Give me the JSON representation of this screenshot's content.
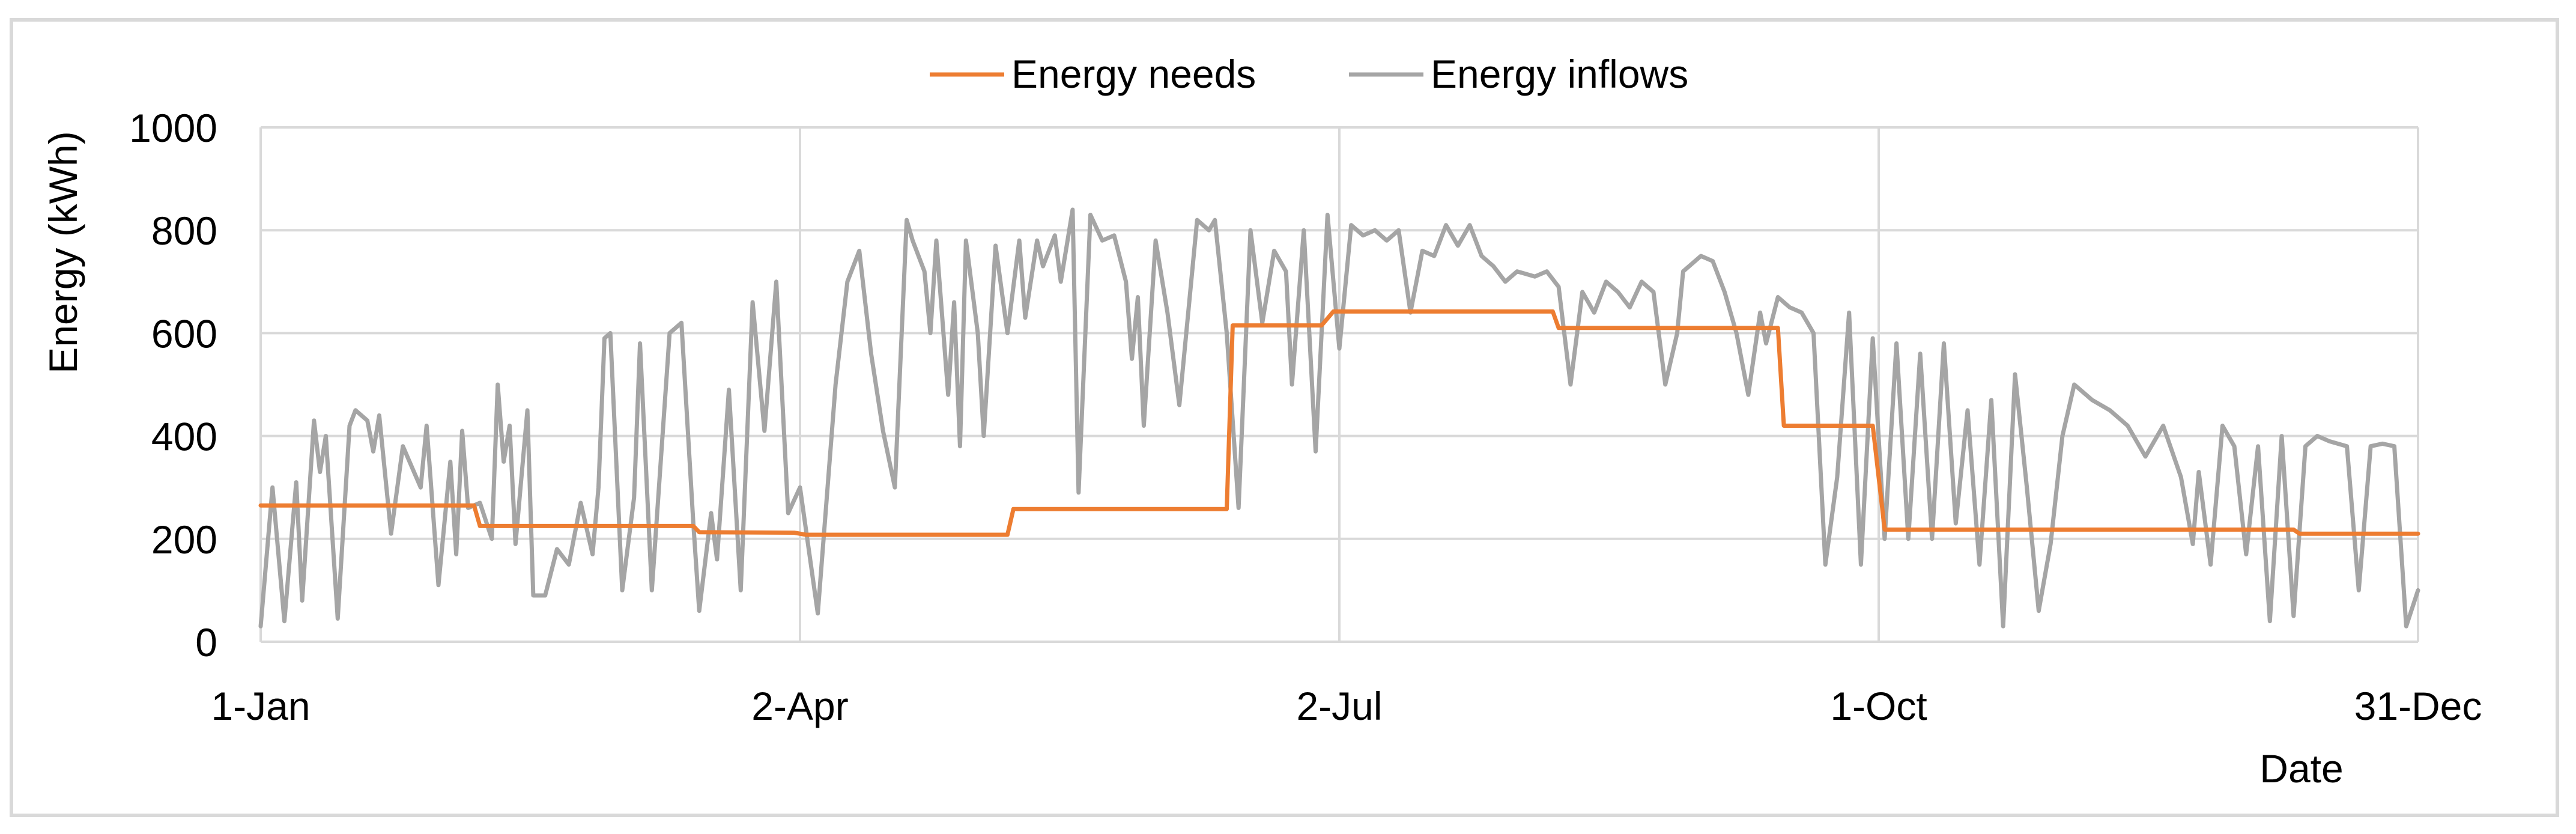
{
  "chart_data": {
    "type": "line",
    "title": "",
    "xlabel": "Date",
    "ylabel": "Energy (kWh)",
    "xlim": [
      "1-Jan",
      "31-Dec"
    ],
    "ylim": [
      0,
      1000
    ],
    "x_ticks": [
      "1-Jan",
      "2-Apr",
      "2-Jul",
      "1-Oct",
      "31-Dec"
    ],
    "y_ticks": [
      0,
      200,
      400,
      600,
      800,
      1000
    ],
    "grid": "major both axes",
    "legend_position": "top-center",
    "colors": {
      "Energy needs": "#ed7d31",
      "Energy inflows": "#a5a5a5"
    },
    "series": [
      {
        "name": "Energy needs",
        "points": [
          [
            "1-Jan",
            265
          ],
          [
            "6-Feb",
            265
          ],
          [
            "7-Feb",
            225
          ],
          [
            "15-Mar",
            225
          ],
          [
            "16-Mar",
            213
          ],
          [
            "1-Apr",
            212
          ],
          [
            "3-Apr",
            208
          ],
          [
            "7-May",
            208
          ],
          [
            "8-May",
            258
          ],
          [
            "13-Jun",
            258
          ],
          [
            "14-Jun",
            615
          ],
          [
            "29-Jun",
            615
          ],
          [
            "1-Jul",
            642
          ],
          [
            "7-Aug",
            642
          ],
          [
            "8-Aug",
            610
          ],
          [
            "14-Sep",
            610
          ],
          [
            "15-Sep",
            420
          ],
          [
            "30-Sep",
            420
          ],
          [
            "2-Oct",
            218
          ],
          [
            "10-Dec",
            218
          ],
          [
            "11-Dec",
            210
          ],
          [
            "31-Dec",
            210
          ]
        ]
      },
      {
        "name": "Energy inflows",
        "points": [
          [
            "1-Jan",
            30
          ],
          [
            "3-Jan",
            300
          ],
          [
            "5-Jan",
            40
          ],
          [
            "7-Jan",
            310
          ],
          [
            "8-Jan",
            80
          ],
          [
            "10-Jan",
            430
          ],
          [
            "11-Jan",
            330
          ],
          [
            "12-Jan",
            400
          ],
          [
            "14-Jan",
            45
          ],
          [
            "16-Jan",
            420
          ],
          [
            "17-Jan",
            450
          ],
          [
            "19-Jan",
            430
          ],
          [
            "20-Jan",
            370
          ],
          [
            "21-Jan",
            440
          ],
          [
            "23-Jan",
            210
          ],
          [
            "25-Jan",
            380
          ],
          [
            "28-Jan",
            300
          ],
          [
            "29-Jan",
            420
          ],
          [
            "31-Jan",
            110
          ],
          [
            "2-Feb",
            350
          ],
          [
            "3-Feb",
            170
          ],
          [
            "4-Feb",
            410
          ],
          [
            "5-Feb",
            260
          ],
          [
            "7-Feb",
            270
          ],
          [
            "9-Feb",
            200
          ],
          [
            "10-Feb",
            500
          ],
          [
            "11-Feb",
            350
          ],
          [
            "12-Feb",
            420
          ],
          [
            "13-Feb",
            190
          ],
          [
            "15-Feb",
            450
          ],
          [
            "16-Feb",
            90
          ],
          [
            "18-Feb",
            90
          ],
          [
            "20-Feb",
            180
          ],
          [
            "22-Feb",
            150
          ],
          [
            "24-Feb",
            270
          ],
          [
            "26-Feb",
            170
          ],
          [
            "27-Feb",
            300
          ],
          [
            "28-Feb",
            590
          ],
          [
            "1-Mar",
            600
          ],
          [
            "3-Mar",
            100
          ],
          [
            "5-Mar",
            280
          ],
          [
            "6-Mar",
            580
          ],
          [
            "8-Mar",
            100
          ],
          [
            "11-Mar",
            600
          ],
          [
            "13-Mar",
            620
          ],
          [
            "15-Mar",
            230
          ],
          [
            "16-Mar",
            60
          ],
          [
            "18-Mar",
            250
          ],
          [
            "19-Mar",
            160
          ],
          [
            "21-Mar",
            490
          ],
          [
            "23-Mar",
            100
          ],
          [
            "25-Mar",
            660
          ],
          [
            "27-Mar",
            410
          ],
          [
            "29-Mar",
            700
          ],
          [
            "31-Mar",
            250
          ],
          [
            "2-Apr",
            300
          ],
          [
            "5-Apr",
            55
          ],
          [
            "8-Apr",
            500
          ],
          [
            "10-Apr",
            700
          ],
          [
            "12-Apr",
            760
          ],
          [
            "14-Apr",
            560
          ],
          [
            "16-Apr",
            410
          ],
          [
            "18-Apr",
            300
          ],
          [
            "20-Apr",
            820
          ],
          [
            "21-Apr",
            780
          ],
          [
            "23-Apr",
            720
          ],
          [
            "24-Apr",
            600
          ],
          [
            "25-Apr",
            780
          ],
          [
            "27-Apr",
            480
          ],
          [
            "28-Apr",
            660
          ],
          [
            "29-Apr",
            380
          ],
          [
            "30-Apr",
            780
          ],
          [
            "2-May",
            600
          ],
          [
            "3-May",
            400
          ],
          [
            "5-May",
            770
          ],
          [
            "7-May",
            600
          ],
          [
            "9-May",
            780
          ],
          [
            "10-May",
            630
          ],
          [
            "12-May",
            780
          ],
          [
            "13-May",
            730
          ],
          [
            "15-May",
            790
          ],
          [
            "16-May",
            700
          ],
          [
            "18-May",
            840
          ],
          [
            "19-May",
            290
          ],
          [
            "21-May",
            830
          ],
          [
            "23-May",
            780
          ],
          [
            "25-May",
            790
          ],
          [
            "27-May",
            700
          ],
          [
            "28-May",
            550
          ],
          [
            "29-May",
            670
          ],
          [
            "30-May",
            420
          ],
          [
            "1-Jun",
            780
          ],
          [
            "3-Jun",
            640
          ],
          [
            "5-Jun",
            460
          ],
          [
            "8-Jun",
            820
          ],
          [
            "10-Jun",
            800
          ],
          [
            "11-Jun",
            820
          ],
          [
            "13-Jun",
            600
          ],
          [
            "15-Jun",
            260
          ],
          [
            "17-Jun",
            800
          ],
          [
            "19-Jun",
            620
          ],
          [
            "21-Jun",
            760
          ],
          [
            "23-Jun",
            720
          ],
          [
            "24-Jun",
            500
          ],
          [
            "26-Jun",
            800
          ],
          [
            "28-Jun",
            370
          ],
          [
            "30-Jun",
            830
          ],
          [
            "2-Jul",
            570
          ],
          [
            "4-Jul",
            810
          ],
          [
            "6-Jul",
            790
          ],
          [
            "8-Jul",
            800
          ],
          [
            "10-Jul",
            780
          ],
          [
            "12-Jul",
            800
          ],
          [
            "14-Jul",
            640
          ],
          [
            "16-Jul",
            760
          ],
          [
            "18-Jul",
            750
          ],
          [
            "20-Jul",
            810
          ],
          [
            "22-Jul",
            770
          ],
          [
            "24-Jul",
            810
          ],
          [
            "26-Jul",
            750
          ],
          [
            "28-Jul",
            730
          ],
          [
            "30-Jul",
            700
          ],
          [
            "1-Aug",
            720
          ],
          [
            "4-Aug",
            710
          ],
          [
            "6-Aug",
            720
          ],
          [
            "8-Aug",
            690
          ],
          [
            "10-Aug",
            500
          ],
          [
            "12-Aug",
            680
          ],
          [
            "14-Aug",
            640
          ],
          [
            "16-Aug",
            700
          ],
          [
            "18-Aug",
            680
          ],
          [
            "20-Aug",
            650
          ],
          [
            "22-Aug",
            700
          ],
          [
            "24-Aug",
            680
          ],
          [
            "26-Aug",
            500
          ],
          [
            "28-Aug",
            600
          ],
          [
            "29-Aug",
            720
          ],
          [
            "1-Sep",
            750
          ],
          [
            "3-Sep",
            740
          ],
          [
            "5-Sep",
            680
          ],
          [
            "7-Sep",
            600
          ],
          [
            "9-Sep",
            480
          ],
          [
            "11-Sep",
            640
          ],
          [
            "12-Sep",
            580
          ],
          [
            "14-Sep",
            670
          ],
          [
            "16-Sep",
            650
          ],
          [
            "18-Sep",
            640
          ],
          [
            "20-Sep",
            600
          ],
          [
            "22-Sep",
            150
          ],
          [
            "24-Sep",
            320
          ],
          [
            "26-Sep",
            640
          ],
          [
            "28-Sep",
            150
          ],
          [
            "30-Sep",
            590
          ],
          [
            "2-Oct",
            200
          ],
          [
            "4-Oct",
            580
          ],
          [
            "6-Oct",
            200
          ],
          [
            "8-Oct",
            560
          ],
          [
            "10-Oct",
            200
          ],
          [
            "12-Oct",
            580
          ],
          [
            "14-Oct",
            230
          ],
          [
            "16-Oct",
            450
          ],
          [
            "18-Oct",
            150
          ],
          [
            "20-Oct",
            470
          ],
          [
            "22-Oct",
            30
          ],
          [
            "24-Oct",
            520
          ],
          [
            "26-Oct",
            300
          ],
          [
            "28-Oct",
            60
          ],
          [
            "30-Oct",
            190
          ],
          [
            "1-Nov",
            400
          ],
          [
            "3-Nov",
            500
          ],
          [
            "6-Nov",
            470
          ],
          [
            "9-Nov",
            450
          ],
          [
            "12-Nov",
            420
          ],
          [
            "15-Nov",
            360
          ],
          [
            "18-Nov",
            420
          ],
          [
            "21-Nov",
            320
          ],
          [
            "23-Nov",
            190
          ],
          [
            "24-Nov",
            330
          ],
          [
            "26-Nov",
            150
          ],
          [
            "28-Nov",
            420
          ],
          [
            "30-Nov",
            380
          ],
          [
            "2-Dec",
            170
          ],
          [
            "4-Dec",
            380
          ],
          [
            "6-Dec",
            40
          ],
          [
            "8-Dec",
            400
          ],
          [
            "10-Dec",
            50
          ],
          [
            "12-Dec",
            380
          ],
          [
            "14-Dec",
            400
          ],
          [
            "16-Dec",
            390
          ],
          [
            "19-Dec",
            380
          ],
          [
            "21-Dec",
            100
          ],
          [
            "23-Dec",
            380
          ],
          [
            "25-Dec",
            385
          ],
          [
            "27-Dec",
            380
          ],
          [
            "29-Dec",
            30
          ],
          [
            "31-Dec",
            100
          ]
        ]
      }
    ]
  }
}
